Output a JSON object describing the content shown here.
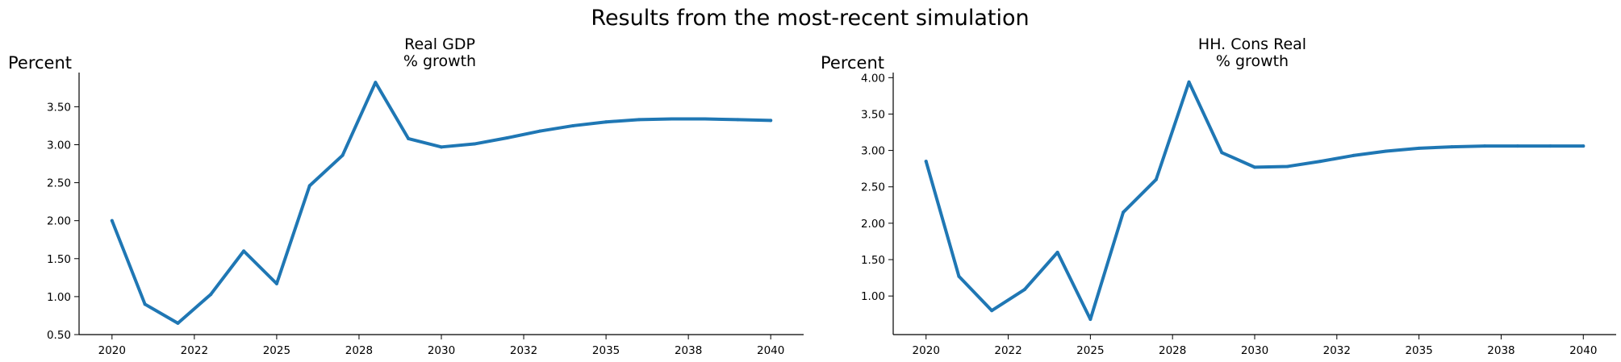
{
  "figure": {
    "suptitle": "Results from the most-recent simulation",
    "line_color": "#1f77b4"
  },
  "chart_data": [
    {
      "type": "line",
      "title_lines": [
        "Real GDP",
        "% growth"
      ],
      "ylabel": "Percent",
      "xlabel": "",
      "x": [
        2020,
        2021,
        2022,
        2023,
        2024,
        2025,
        2026,
        2027,
        2028,
        2029,
        2030,
        2031,
        2032,
        2033,
        2034,
        2035,
        2036,
        2037,
        2038,
        2039,
        2040
      ],
      "series": [
        {
          "values": [
            2.0,
            0.9,
            0.65,
            1.03,
            1.6,
            1.17,
            2.46,
            2.86,
            3.82,
            3.08,
            2.97,
            3.01,
            3.09,
            3.18,
            3.25,
            3.3,
            3.33,
            3.34,
            3.34,
            3.33,
            3.32
          ],
          "color": "#1f77b4"
        }
      ],
      "xticks": [
        2020,
        2022.5,
        2025,
        2027.5,
        2030,
        2032.5,
        2035,
        2037.5,
        2040
      ],
      "xtick_labels": [
        "2020",
        "2022",
        "2025",
        "2028",
        "2030",
        "2032",
        "2035",
        "2038",
        "2040"
      ],
      "yticks": [
        0.5,
        1.0,
        1.5,
        2.0,
        2.5,
        3.0,
        3.5
      ],
      "ytick_labels": [
        "0.50",
        "1.00",
        "1.50",
        "2.00",
        "2.50",
        "3.00",
        "3.50"
      ],
      "xlim": [
        2019,
        2041
      ],
      "ylim": [
        0.5,
        3.95
      ],
      "grid": false
    },
    {
      "type": "line",
      "title_lines": [
        "HH. Cons Real",
        "% growth"
      ],
      "ylabel": "Percent",
      "xlabel": "",
      "x": [
        2020,
        2021,
        2022,
        2023,
        2024,
        2025,
        2026,
        2027,
        2028,
        2029,
        2030,
        2031,
        2032,
        2033,
        2034,
        2035,
        2036,
        2037,
        2038,
        2039,
        2040
      ],
      "series": [
        {
          "values": [
            2.85,
            1.27,
            0.8,
            1.09,
            1.6,
            0.68,
            2.15,
            2.6,
            3.94,
            2.97,
            2.77,
            2.78,
            2.85,
            2.93,
            2.99,
            3.03,
            3.05,
            3.06,
            3.06,
            3.06,
            3.06
          ],
          "color": "#1f77b4"
        }
      ],
      "xticks": [
        2020,
        2022.5,
        2025,
        2027.5,
        2030,
        2032.5,
        2035,
        2037.5,
        2040
      ],
      "xtick_labels": [
        "2020",
        "2022",
        "2025",
        "2028",
        "2030",
        "2032",
        "2035",
        "2038",
        "2040"
      ],
      "yticks": [
        1.0,
        1.5,
        2.0,
        2.5,
        3.0,
        3.5,
        4.0
      ],
      "ytick_labels": [
        "1.00",
        "1.50",
        "2.00",
        "2.50",
        "3.00",
        "3.50",
        "4.00"
      ],
      "xlim": [
        2019,
        2041
      ],
      "ylim": [
        0.47,
        4.07
      ],
      "grid": false
    }
  ]
}
